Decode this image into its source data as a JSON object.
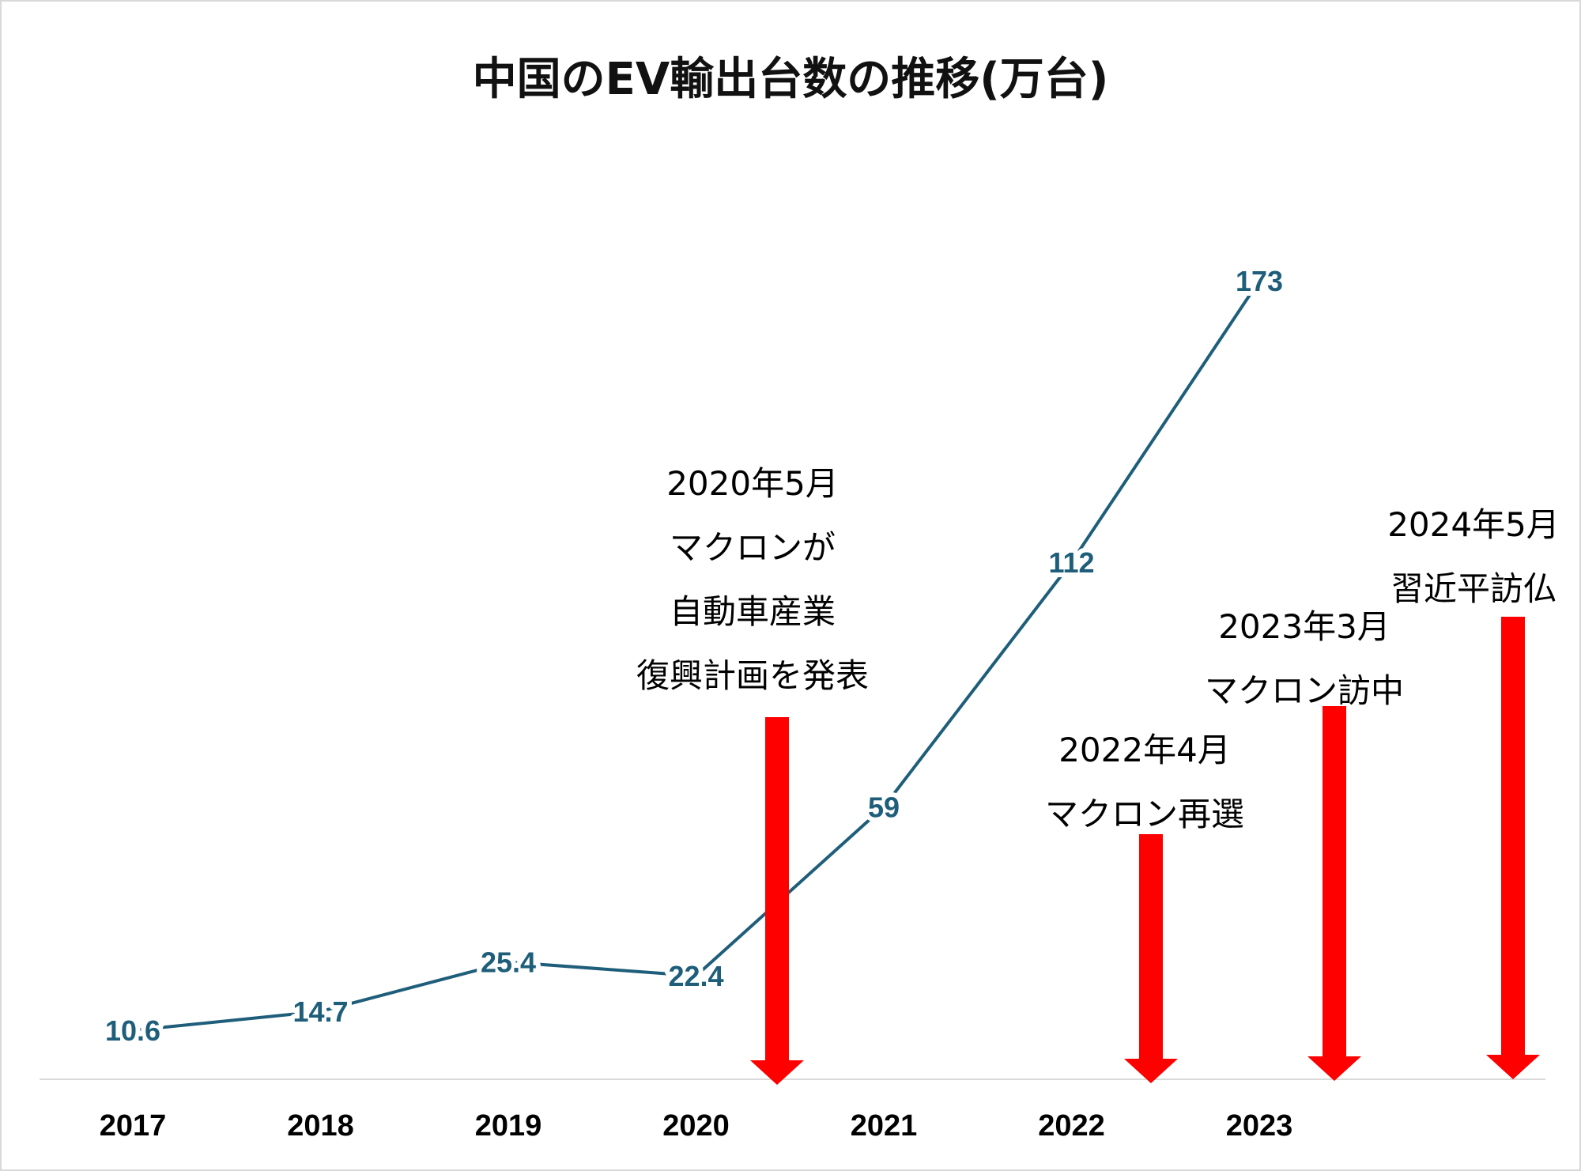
{
  "chart_data": {
    "type": "line",
    "title": "中国のEV輸出台数の推移(万台)",
    "categories": [
      "2017",
      "2018",
      "2019",
      "2020",
      "2021",
      "2022",
      "2023"
    ],
    "series": [
      {
        "values": [
          10.6,
          14.7,
          25.4,
          22.4,
          59,
          112,
          173
        ],
        "labels": [
          "10.6",
          "14.7",
          "25.4",
          "22.4",
          "59",
          "112",
          "173"
        ]
      }
    ],
    "line_color": "#1f5e7a",
    "ylim": [
      0,
      185
    ],
    "grid": false,
    "legend": "none",
    "annotations": [
      {
        "lines": [
          "2020年5月",
          "マクロンが",
          "自動車産業",
          "復興計画を発表"
        ],
        "arrow_color": "#ff0000"
      },
      {
        "lines": [
          "2022年4月",
          "マクロン再選"
        ],
        "arrow_color": "#ff0000"
      },
      {
        "lines": [
          "2023年3月",
          "マクロン訪中"
        ],
        "arrow_color": "#ff0000"
      },
      {
        "lines": [
          "2024年5月",
          "習近平訪仏"
        ],
        "arrow_color": "#ff0000"
      }
    ]
  }
}
